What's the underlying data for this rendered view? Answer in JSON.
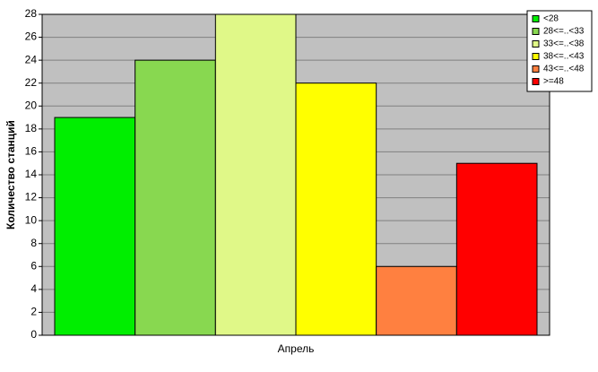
{
  "chart_data": {
    "type": "bar",
    "ylabel": "Количество станций",
    "categories": [
      "Апрель"
    ],
    "series": [
      {
        "name": "<28",
        "color": "#00ee00",
        "values": [
          19
        ]
      },
      {
        "name": "28<=..<33",
        "color": "#88d850",
        "values": [
          24
        ]
      },
      {
        "name": "33<=..<38",
        "color": "#e0f888",
        "values": [
          28
        ]
      },
      {
        "name": "38<=..<43",
        "color": "#ffff00",
        "values": [
          22
        ]
      },
      {
        "name": "43<=..<48",
        "color": "#ff8040",
        "values": [
          6
        ]
      },
      {
        "name": ">=48",
        "color": "#ff0000",
        "values": [
          15
        ]
      }
    ],
    "ylim": [
      0,
      28
    ],
    "yticks": [
      0,
      2,
      4,
      6,
      8,
      10,
      12,
      14,
      16,
      18,
      20,
      22,
      24,
      26,
      28
    ],
    "grid": true,
    "legend": "top-right"
  }
}
